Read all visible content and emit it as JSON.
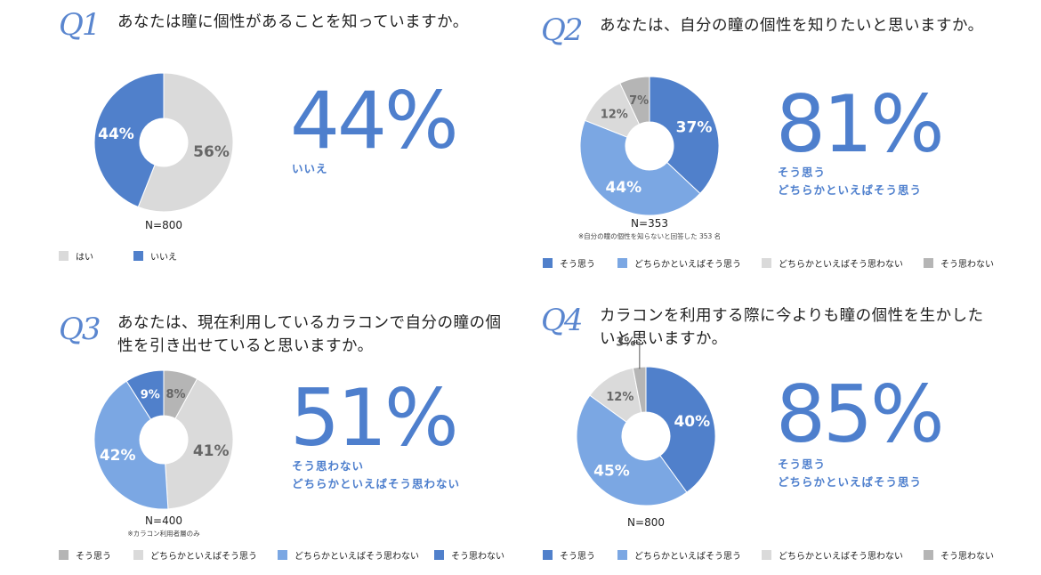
{
  "colors": {
    "dark_blue": "#5080cb",
    "light_blue": "#7ba7e3",
    "light_gray": "#dadada",
    "mid_gray": "#b5b5b5",
    "accent": "#4e7fcd"
  },
  "chart_data": [
    {
      "type": "pie",
      "qlabel": "Q1",
      "title": "あなたは瞳に個性があることを知っていますか。",
      "categories": [
        "はい",
        "いいえ"
      ],
      "values": [
        56,
        44
      ],
      "labels": [
        "56%",
        "44%"
      ],
      "colors": [
        "#dadada",
        "#5080cb"
      ],
      "highlight": "44%",
      "highlight_sub": [
        "いいえ"
      ],
      "n": "N=800",
      "note": "",
      "legend": [
        "はい",
        "いいえ"
      ],
      "legend_colors": [
        "#dadada",
        "#5080cb"
      ]
    },
    {
      "type": "pie",
      "qlabel": "Q2",
      "title": "あなたは、自分の瞳の個性を知りたいと思いますか。",
      "categories": [
        "そう思う",
        "どちらかといえばそう思う",
        "どちらかといえばそう思わない",
        "そう思わない"
      ],
      "values": [
        37,
        44,
        12,
        7
      ],
      "labels": [
        "37%",
        "44%",
        "12%",
        "7%"
      ],
      "colors": [
        "#5080cb",
        "#7ba7e3",
        "#dadada",
        "#b5b5b5"
      ],
      "highlight": "81%",
      "highlight_sub": [
        "そう思う",
        "どちらかといえばそう思う"
      ],
      "n": "N=353",
      "note": "※自分の瞳の個性を知らないと回答した 353 名",
      "legend": [
        "そう思う",
        "どちらかといえばそう思う",
        "どちらかといえばそう思わない",
        "そう思わない"
      ],
      "legend_colors": [
        "#5080cb",
        "#7ba7e3",
        "#dadada",
        "#b5b5b5"
      ]
    },
    {
      "type": "pie",
      "qlabel": "Q3",
      "title": "あなたは、現在利用しているカラコンで自分の瞳の個性を引き出せていると思いますか。",
      "title_lines": [
        "あなたは、現在利用しているカラコンで自分の瞳の個",
        "性を引き出せていると思いますか。"
      ],
      "categories": [
        "そう思う",
        "どちらかといえばそう思う",
        "どちらかといえばそう思わない",
        "そう思わない"
      ],
      "values": [
        8,
        41,
        42,
        9
      ],
      "labels": [
        "8%",
        "41%",
        "42%",
        "9%"
      ],
      "colors": [
        "#b5b5b5",
        "#dadada",
        "#7ba7e3",
        "#5080cb"
      ],
      "highlight": "51%",
      "highlight_sub": [
        "そう思わない",
        "どちらかといえばそう思わない"
      ],
      "n": "N=400",
      "note": "※カラコン利用者層のみ",
      "legend": [
        "そう思う",
        "どちらかといえばそう思う",
        "どちらかといえばそう思わない",
        "そう思わない"
      ],
      "legend_colors": [
        "#b5b5b5",
        "#dadada",
        "#7ba7e3",
        "#5080cb"
      ]
    },
    {
      "type": "pie",
      "qlabel": "Q4",
      "title": "カラコンを利用する際に今よりも瞳の個性を生かしたいと思いますか。",
      "title_lines": [
        "カラコンを利用する際に今よりも瞳の個性を生かした",
        "いと思いますか。"
      ],
      "categories": [
        "そう思う",
        "どちらかといえばそう思う",
        "どちらかといえばそう思わない",
        "そう思わない"
      ],
      "values": [
        40,
        45,
        12,
        3
      ],
      "labels": [
        "40%",
        "45%",
        "12%",
        "3%"
      ],
      "colors": [
        "#5080cb",
        "#7ba7e3",
        "#dadada",
        "#b5b5b5"
      ],
      "highlight": "85%",
      "highlight_sub": [
        "そう思う",
        "どちらかといえばそう思う"
      ],
      "n": "N=800",
      "note": "",
      "legend": [
        "そう思う",
        "どちらかといえばそう思う",
        "どちらかといえばそう思わない",
        "そう思わない"
      ],
      "legend_colors": [
        "#5080cb",
        "#7ba7e3",
        "#dadada",
        "#b5b5b5"
      ]
    }
  ]
}
